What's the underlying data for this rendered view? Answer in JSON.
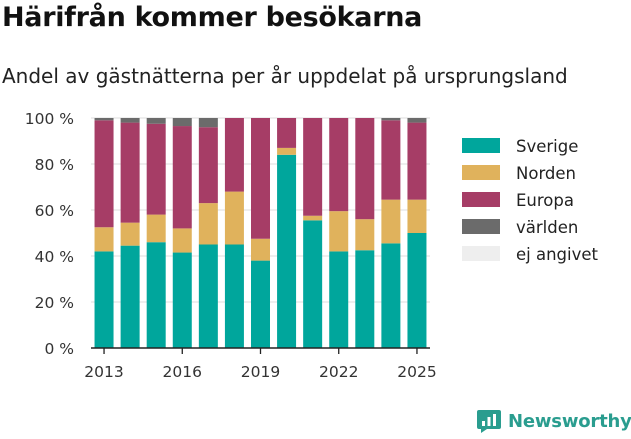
{
  "header": {
    "title": "Härifrån kommer besökarna",
    "subtitle": "Andel av gästnätterna per år uppdelat på ursprungsland"
  },
  "brand": {
    "name": "Newsworthy",
    "icon": "chart-logo-icon",
    "color": "#2a9d8f"
  },
  "chart_data": {
    "type": "bar",
    "stacked": true,
    "x": [
      2013,
      2014,
      2015,
      2016,
      2017,
      2018,
      2019,
      2020,
      2021,
      2022,
      2023,
      2024,
      2025
    ],
    "x_tick_labels": [
      "2013",
      "2016",
      "2019",
      "2022",
      "2025"
    ],
    "y_tick_labels": [
      "0 %",
      "20 %",
      "40 %",
      "60 %",
      "80 %",
      "100 %"
    ],
    "ylim": [
      0,
      100
    ],
    "grid": true,
    "legend_position": "right",
    "series": [
      {
        "name": "Sverige",
        "color": "#00a69c",
        "values": [
          42,
          44.5,
          46,
          41.5,
          45,
          45,
          38,
          84,
          55.5,
          42,
          42.5,
          45.5,
          50
        ]
      },
      {
        "name": "Norden",
        "color": "#e0b25c",
        "values": [
          10.5,
          10,
          12,
          10.5,
          18,
          23,
          9.5,
          3,
          2,
          17.5,
          13.5,
          19,
          14.5
        ]
      },
      {
        "name": "Europa",
        "color": "#a63d66",
        "values": [
          46.5,
          43.5,
          39.5,
          44.5,
          33,
          32,
          52.5,
          13,
          42.5,
          40.5,
          44,
          34.5,
          33.5
        ]
      },
      {
        "name": "världen",
        "color": "#6b6b6b",
        "values": [
          1,
          2,
          2.5,
          3.5,
          4,
          0,
          0,
          0,
          0,
          0,
          0,
          1,
          2
        ]
      },
      {
        "name": "ej angivet",
        "color": "#eeeeee",
        "values": [
          0,
          0,
          0,
          0,
          0,
          0,
          0,
          0,
          0,
          0,
          0,
          0,
          0
        ]
      }
    ]
  }
}
